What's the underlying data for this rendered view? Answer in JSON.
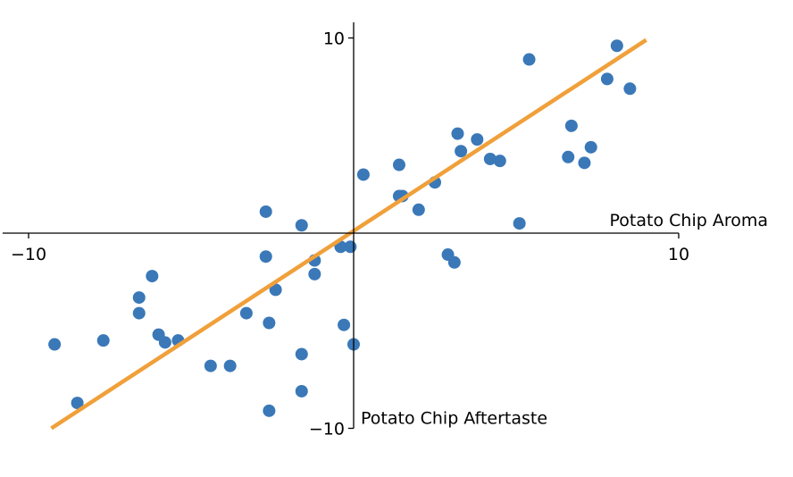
{
  "chart_data": {
    "type": "scatter",
    "title": "",
    "xlabel": "Potato Chip Aroma",
    "ylabel": "Potato Chip Aftertaste",
    "xlim": [
      -10.8,
      10
    ],
    "ylim": [
      -10,
      10.8
    ],
    "x_ticks": [
      -10,
      10
    ],
    "y_ticks": [
      -10,
      10
    ],
    "x_tick_labels": [
      "−10",
      "10"
    ],
    "y_tick_labels": [
      "−10",
      "10"
    ],
    "grid": false,
    "colors": {
      "points": "#3a78b8",
      "fit_line": "#f0a03a"
    },
    "series": [
      {
        "points": [
          [
            -9.2,
            -5.7
          ],
          [
            -8.5,
            -8.7
          ],
          [
            -7.7,
            -5.5
          ],
          [
            -6.6,
            -3.3
          ],
          [
            -6.6,
            -4.1
          ],
          [
            -6.2,
            -2.2
          ],
          [
            -6.0,
            -5.2
          ],
          [
            -5.8,
            -5.6
          ],
          [
            -5.4,
            -5.5
          ],
          [
            -4.4,
            -6.8
          ],
          [
            -3.8,
            -6.8
          ],
          [
            -3.3,
            -4.1
          ],
          [
            -2.7,
            1.1
          ],
          [
            -2.7,
            -1.2
          ],
          [
            -2.6,
            -4.6
          ],
          [
            -2.6,
            -9.1
          ],
          [
            -2.4,
            -2.9
          ],
          [
            -1.6,
            -6.2
          ],
          [
            -1.6,
            -8.1
          ],
          [
            -1.6,
            0.4
          ],
          [
            -1.2,
            -1.4
          ],
          [
            -1.2,
            -2.1
          ],
          [
            -0.4,
            -0.7
          ],
          [
            -0.3,
            -4.7
          ],
          [
            -0.1,
            -0.7
          ],
          [
            0.0,
            -5.7
          ],
          [
            0.3,
            3.0
          ],
          [
            1.4,
            3.5
          ],
          [
            1.4,
            1.9
          ],
          [
            1.5,
            1.9
          ],
          [
            2.0,
            1.2
          ],
          [
            2.5,
            2.6
          ],
          [
            2.9,
            -1.1
          ],
          [
            3.1,
            -1.5
          ],
          [
            3.2,
            5.1
          ],
          [
            3.3,
            4.2
          ],
          [
            3.8,
            4.8
          ],
          [
            4.2,
            3.8
          ],
          [
            4.5,
            3.7
          ],
          [
            5.1,
            0.5
          ],
          [
            5.4,
            8.9
          ],
          [
            6.6,
            3.9
          ],
          [
            6.7,
            5.5
          ],
          [
            7.1,
            3.6
          ],
          [
            7.3,
            4.4
          ],
          [
            7.8,
            7.9
          ],
          [
            8.1,
            9.6
          ],
          [
            8.5,
            7.4
          ]
        ]
      }
    ],
    "fit_line": {
      "x": [
        -9.3,
        9.0
      ],
      "y": [
        -10.0,
        9.9
      ]
    }
  }
}
